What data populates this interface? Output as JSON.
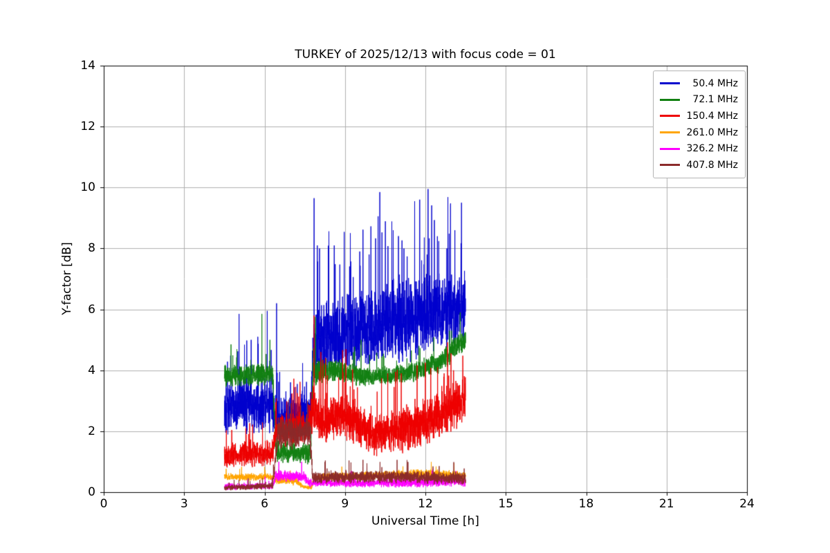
{
  "chart_data": {
    "type": "line",
    "title": "TURKEY of 2025/12/13 with focus code = 01",
    "xlabel": "Universal Time [h]",
    "ylabel": "Y-factor [dB]",
    "xlim": [
      0,
      24
    ],
    "ylim": [
      0,
      14
    ],
    "xticks": [
      0,
      3,
      6,
      9,
      12,
      15,
      18,
      21,
      24
    ],
    "yticks": [
      0,
      2,
      4,
      6,
      8,
      10,
      12,
      14
    ],
    "grid": true,
    "grid_color": "#b0b0b0",
    "legend_position": "upper right",
    "time_coverage_h": [
      4.5,
      13.5
    ],
    "series": [
      {
        "name": "50.4 MHz",
        "color": "#0000cd",
        "tail_p": 0.03,
        "envelope": [
          [
            4.5,
            2.8,
            1.0
          ],
          [
            6.3,
            2.9,
            1.0
          ],
          [
            6.42,
            2.45,
            0.75
          ],
          [
            7.72,
            2.5,
            0.8
          ],
          [
            7.8,
            5.0,
            1.5
          ],
          [
            8.5,
            5.1,
            1.4
          ],
          [
            9.5,
            5.3,
            1.5
          ],
          [
            10.5,
            5.5,
            1.5
          ],
          [
            11.5,
            5.7,
            1.5
          ],
          [
            12.5,
            6.0,
            1.5
          ],
          [
            13.5,
            6.1,
            1.4
          ]
        ],
        "spikes": [
          [
            5.05,
            5.85
          ],
          [
            5.5,
            5.0
          ],
          [
            5.75,
            5.1
          ],
          [
            6.1,
            5.95
          ],
          [
            6.45,
            6.2
          ],
          [
            7.85,
            9.65
          ],
          [
            8.05,
            8.0
          ],
          [
            8.6,
            8.1
          ],
          [
            9.2,
            8.5
          ],
          [
            9.55,
            7.9
          ],
          [
            9.9,
            7.8
          ],
          [
            10.3,
            9.85
          ],
          [
            10.8,
            8.6
          ],
          [
            11.2,
            8.0
          ],
          [
            11.6,
            9.55
          ],
          [
            12.1,
            9.95
          ],
          [
            12.45,
            8.4
          ],
          [
            12.8,
            8.0
          ],
          [
            13.1,
            8.6
          ],
          [
            13.35,
            9.5
          ]
        ]
      },
      {
        "name": "72.1 MHz",
        "color": "#128012",
        "tail_p": 0.012,
        "envelope": [
          [
            4.5,
            3.8,
            0.4
          ],
          [
            6.3,
            3.9,
            0.4
          ],
          [
            6.42,
            1.35,
            0.4
          ],
          [
            7.72,
            1.25,
            0.4
          ],
          [
            7.8,
            3.9,
            0.5
          ],
          [
            8.6,
            4.0,
            0.4
          ],
          [
            9.6,
            3.8,
            0.35
          ],
          [
            10.6,
            3.8,
            0.35
          ],
          [
            11.6,
            3.95,
            0.35
          ],
          [
            12.6,
            4.3,
            0.4
          ],
          [
            13.2,
            4.85,
            0.45
          ],
          [
            13.5,
            4.95,
            0.4
          ]
        ],
        "spikes": [
          [
            4.75,
            4.85
          ],
          [
            5.9,
            5.85
          ],
          [
            6.2,
            5.0
          ],
          [
            7.9,
            5.75
          ],
          [
            9.6,
            5.0
          ],
          [
            12.9,
            5.3
          ],
          [
            13.3,
            5.9
          ]
        ]
      },
      {
        "name": "150.4 MHz",
        "color": "#ee0000",
        "tail_p": 0.02,
        "envelope": [
          [
            4.5,
            1.2,
            0.45
          ],
          [
            6.3,
            1.3,
            0.5
          ],
          [
            6.42,
            2.0,
            0.6
          ],
          [
            7.6,
            2.2,
            0.7
          ],
          [
            7.8,
            2.7,
            0.9
          ],
          [
            8.2,
            2.3,
            0.8
          ],
          [
            9.0,
            2.5,
            0.9
          ],
          [
            10.0,
            1.9,
            0.75
          ],
          [
            11.0,
            2.0,
            0.8
          ],
          [
            12.0,
            2.3,
            0.85
          ],
          [
            13.0,
            2.8,
            0.85
          ],
          [
            13.5,
            3.1,
            0.8
          ]
        ],
        "spikes": [
          [
            5.3,
            2.1
          ],
          [
            7.85,
            5.8
          ],
          [
            8.1,
            4.6
          ],
          [
            9.0,
            3.6
          ],
          [
            10.2,
            3.3
          ],
          [
            11.1,
            3.9
          ],
          [
            12.0,
            4.25
          ],
          [
            12.7,
            3.9
          ],
          [
            13.05,
            4.0
          ],
          [
            13.4,
            4.1
          ]
        ]
      },
      {
        "name": "261.0 MHz",
        "color": "#ffa500",
        "tail_p": 0.006,
        "envelope": [
          [
            4.5,
            0.5,
            0.13
          ],
          [
            6.3,
            0.5,
            0.13
          ],
          [
            6.42,
            0.4,
            0.15
          ],
          [
            7.2,
            0.35,
            0.15
          ],
          [
            7.5,
            0.15,
            0.08
          ],
          [
            7.75,
            0.15,
            0.08
          ],
          [
            7.85,
            0.5,
            0.15
          ],
          [
            10.0,
            0.55,
            0.15
          ],
          [
            12.0,
            0.6,
            0.18
          ],
          [
            13.5,
            0.55,
            0.15
          ]
        ],
        "spikes": []
      },
      {
        "name": "326.2 MHz",
        "color": "#ff00ff",
        "tail_p": 0.006,
        "envelope": [
          [
            4.5,
            0.18,
            0.13
          ],
          [
            6.3,
            0.2,
            0.13
          ],
          [
            6.42,
            0.55,
            0.22
          ],
          [
            7.5,
            0.5,
            0.2
          ],
          [
            7.65,
            0.3,
            0.15
          ],
          [
            9.0,
            0.3,
            0.15
          ],
          [
            11.0,
            0.3,
            0.17
          ],
          [
            13.5,
            0.35,
            0.18
          ]
        ],
        "spikes": []
      },
      {
        "name": "407.8 MHz",
        "color": "#8b2a2a",
        "tail_p": 0.012,
        "envelope": [
          [
            4.5,
            0.15,
            0.1
          ],
          [
            6.3,
            0.2,
            0.12
          ],
          [
            6.5,
            1.95,
            0.55
          ],
          [
            7.7,
            1.9,
            0.55
          ],
          [
            7.8,
            0.45,
            0.22
          ],
          [
            9.0,
            0.5,
            0.22
          ],
          [
            11.0,
            0.5,
            0.22
          ],
          [
            13.5,
            0.45,
            0.22
          ]
        ],
        "spikes": [
          [
            6.9,
            2.9
          ],
          [
            7.35,
            2.85
          ],
          [
            7.6,
            3.0
          ]
        ]
      }
    ]
  }
}
